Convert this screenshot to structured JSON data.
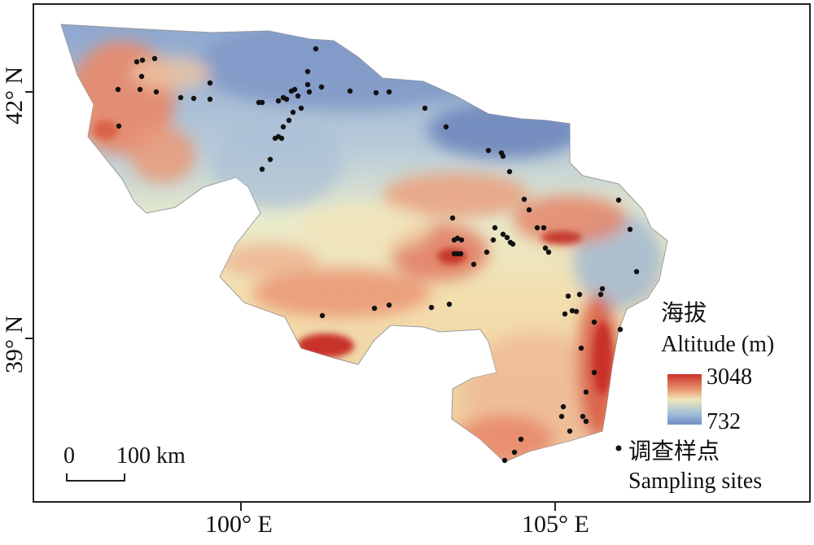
{
  "axes": {
    "y_labels": [
      "42° N",
      "39° N"
    ],
    "x_labels": [
      "100° E",
      "105° E"
    ]
  },
  "legend": {
    "title_cn": "海拔",
    "title_en": "Altitude (m)",
    "max": "3048",
    "min": "732",
    "ramp_colors": [
      "#c8302a",
      "#e78d68",
      "#f2e6b8",
      "#a9c4d8",
      "#6f8fc6"
    ],
    "site_cn": "调查样点",
    "site_en": "Sampling sites"
  },
  "scalebar": {
    "zero": "0",
    "length": "100 km"
  },
  "colors": {
    "frame": "#222222",
    "site": "#111111"
  }
}
